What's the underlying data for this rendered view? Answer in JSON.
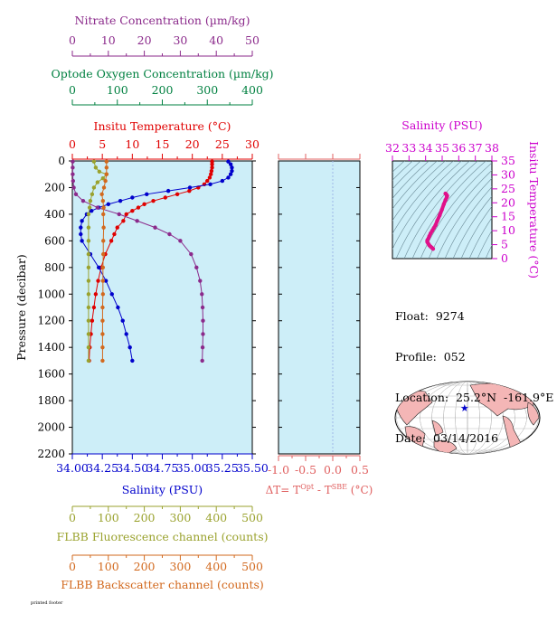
{
  "colors": {
    "nitrate": "#8b2a8b",
    "oxygen": "#008040",
    "temperature": "#e00000",
    "salinity": "#0000cc",
    "fluorescence": "#9aa22e",
    "backscatter": "#d2691e",
    "delta_t": "#e06060",
    "ts_axis": "#cc00cc",
    "plot_bg": "#cdeef8"
  },
  "info": {
    "float": "Float:  9274",
    "profile": "Profile:  052",
    "location": "Location:  25.2°N  -161.9°E",
    "date": "Date:  03/14/2016"
  },
  "footer_text": "printed footer",
  "chart_data": [
    {
      "type": "line",
      "id": "main_profile",
      "ylabel": "Pressure (decibar)",
      "ylim": [
        0,
        2200
      ],
      "yticks": [
        "0",
        "200",
        "400",
        "600",
        "800",
        "1000",
        "1200",
        "1400",
        "1600",
        "1800",
        "2000",
        "2200"
      ],
      "grid": false,
      "axes": {
        "nitrate": {
          "label": "Nitrate Concentration (µm/kg)",
          "range": [
            0,
            50
          ],
          "ticks": [
            "0",
            "10",
            "20",
            "30",
            "40",
            "50"
          ]
        },
        "oxygen": {
          "label": "Optode Oxygen Concentration (µm/kg)",
          "range": [
            0,
            400
          ],
          "ticks": [
            "0",
            "100",
            "200",
            "300",
            "400"
          ]
        },
        "temperature": {
          "label": "Insitu Temperature (°C)",
          "range": [
            0,
            30
          ],
          "ticks": [
            "0",
            "5",
            "10",
            "15",
            "20",
            "25",
            "30"
          ]
        },
        "salinity": {
          "label": "Salinity (PSU)",
          "range": [
            34.0,
            35.5
          ],
          "ticks": [
            "34.00",
            "34.25",
            "34.50",
            "34.75",
            "35.00",
            "35.25",
            "35.50"
          ]
        },
        "fluorescence": {
          "label": "FLBB Fluorescence channel (counts)",
          "range": [
            0,
            500
          ],
          "ticks": [
            "0",
            "100",
            "200",
            "300",
            "400",
            "500"
          ]
        },
        "backscatter": {
          "label": "FLBB Backscatter channel (counts)",
          "range": [
            0,
            500
          ],
          "ticks": [
            "0",
            "100",
            "200",
            "300",
            "400",
            "500"
          ]
        }
      },
      "series": [
        {
          "axis": "temperature",
          "points": [
            [
              23.3,
              5
            ],
            [
              23.3,
              25
            ],
            [
              23.3,
              50
            ],
            [
              23.2,
              75
            ],
            [
              23.1,
              100
            ],
            [
              22.9,
              125
            ],
            [
              22.5,
              150
            ],
            [
              22.0,
              175
            ],
            [
              21.0,
              200
            ],
            [
              19.5,
              225
            ],
            [
              17.5,
              250
            ],
            [
              15.5,
              275
            ],
            [
              13.5,
              300
            ],
            [
              12.0,
              325
            ],
            [
              11.0,
              350
            ],
            [
              10.0,
              375
            ],
            [
              9.0,
              400
            ],
            [
              8.5,
              450
            ],
            [
              7.5,
              500
            ],
            [
              7.0,
              550
            ],
            [
              6.5,
              600
            ],
            [
              5.5,
              700
            ],
            [
              4.8,
              800
            ],
            [
              4.3,
              900
            ],
            [
              3.9,
              1000
            ],
            [
              3.6,
              1100
            ],
            [
              3.3,
              1200
            ],
            [
              3.1,
              1300
            ],
            [
              2.9,
              1400
            ],
            [
              2.8,
              1500
            ]
          ]
        },
        {
          "axis": "salinity",
          "points": [
            [
              35.3,
              5
            ],
            [
              35.32,
              25
            ],
            [
              35.33,
              50
            ],
            [
              35.33,
              75
            ],
            [
              35.32,
              100
            ],
            [
              35.3,
              125
            ],
            [
              35.25,
              150
            ],
            [
              35.15,
              175
            ],
            [
              34.98,
              200
            ],
            [
              34.8,
              225
            ],
            [
              34.62,
              250
            ],
            [
              34.5,
              275
            ],
            [
              34.4,
              300
            ],
            [
              34.3,
              325
            ],
            [
              34.22,
              350
            ],
            [
              34.16,
              375
            ],
            [
              34.12,
              400
            ],
            [
              34.08,
              450
            ],
            [
              34.07,
              500
            ],
            [
              34.07,
              550
            ],
            [
              34.08,
              600
            ],
            [
              34.15,
              700
            ],
            [
              34.22,
              800
            ],
            [
              34.28,
              900
            ],
            [
              34.33,
              1000
            ],
            [
              34.38,
              1100
            ],
            [
              34.42,
              1200
            ],
            [
              34.45,
              1300
            ],
            [
              34.48,
              1400
            ],
            [
              34.5,
              1500
            ]
          ]
        },
        {
          "axis": "nitrate",
          "points": [
            [
              0.1,
              5
            ],
            [
              0.1,
              50
            ],
            [
              0.1,
              100
            ],
            [
              0.2,
              150
            ],
            [
              0.4,
              200
            ],
            [
              1.0,
              250
            ],
            [
              3.0,
              300
            ],
            [
              7.0,
              350
            ],
            [
              13.0,
              400
            ],
            [
              18.0,
              450
            ],
            [
              23.0,
              500
            ],
            [
              27.0,
              550
            ],
            [
              30.0,
              600
            ],
            [
              33.0,
              700
            ],
            [
              34.5,
              800
            ],
            [
              35.5,
              900
            ],
            [
              36.0,
              1000
            ],
            [
              36.2,
              1100
            ],
            [
              36.3,
              1200
            ],
            [
              36.3,
              1300
            ],
            [
              36.2,
              1400
            ],
            [
              36.1,
              1500
            ]
          ]
        },
        {
          "axis": "fluorescence",
          "points": [
            [
              60,
              5
            ],
            [
              65,
              50
            ],
            [
              75,
              80
            ],
            [
              95,
              100
            ],
            [
              85,
              130
            ],
            [
              70,
              160
            ],
            [
              60,
              200
            ],
            [
              55,
              250
            ],
            [
              50,
              300
            ],
            [
              48,
              350
            ],
            [
              45,
              400
            ],
            [
              45,
              500
            ],
            [
              45,
              600
            ],
            [
              45,
              700
            ],
            [
              45,
              800
            ],
            [
              45,
              900
            ],
            [
              45,
              1000
            ],
            [
              45,
              1100
            ],
            [
              45,
              1200
            ],
            [
              45,
              1300
            ],
            [
              45,
              1400
            ],
            [
              45,
              1500
            ]
          ]
        },
        {
          "axis": "backscatter",
          "points": [
            [
              95,
              5
            ],
            [
              95,
              50
            ],
            [
              95,
              100
            ],
            [
              92,
              150
            ],
            [
              88,
              200
            ],
            [
              82,
              250
            ],
            [
              85,
              300
            ],
            [
              87,
              350
            ],
            [
              86,
              400
            ],
            [
              87,
              500
            ],
            [
              86,
              600
            ],
            [
              86,
              700
            ],
            [
              85,
              800
            ],
            [
              85,
              900
            ],
            [
              85,
              1000
            ],
            [
              84,
              1100
            ],
            [
              84,
              1200
            ],
            [
              84,
              1300
            ],
            [
              84,
              1400
            ],
            [
              84,
              1500
            ]
          ]
        }
      ]
    },
    {
      "type": "line",
      "id": "delta_t",
      "xlabel": "ΔT= Tᴼᵖᵗ - Tˢᴮᴱ (°C)",
      "xlabel_main": "ΔT= T",
      "xlabel_sup1": "Opt",
      "xlabel_mid": " - T",
      "xlabel_sup2": "SBE",
      "xlabel_end": " (°C)",
      "xlim": [
        -1.0,
        0.5
      ],
      "xticks": [
        "-1.0",
        "-0.5",
        "0.0",
        "0.5"
      ],
      "ylim": [
        0,
        2200
      ],
      "series": []
    },
    {
      "type": "scatter",
      "id": "ts_diagram",
      "title": "Salinity (PSU)",
      "ylabel": "Insitu Temperature (°C)",
      "xlim": [
        32,
        38
      ],
      "xticks": [
        "32",
        "33",
        "34",
        "35",
        "36",
        "37",
        "38"
      ],
      "ylim": [
        0,
        35
      ],
      "yticks": [
        "0",
        "5",
        "10",
        "15",
        "20",
        "25",
        "30",
        "35"
      ],
      "series": [
        {
          "name": "",
          "points": [
            [
              35.2,
              23.3
            ],
            [
              35.25,
              23.0
            ],
            [
              35.3,
              22.5
            ],
            [
              35.28,
              22.0
            ],
            [
              35.2,
              21.0
            ],
            [
              35.1,
              19.5
            ],
            [
              34.98,
              17.5
            ],
            [
              34.85,
              15.5
            ],
            [
              34.7,
              13.5
            ],
            [
              34.6,
              12.0
            ],
            [
              34.5,
              11.0
            ],
            [
              34.4,
              10.0
            ],
            [
              34.3,
              9.0
            ],
            [
              34.22,
              8.0
            ],
            [
              34.15,
              7.0
            ],
            [
              34.1,
              6.5
            ],
            [
              34.1,
              6.0
            ],
            [
              34.15,
              5.5
            ],
            [
              34.22,
              4.8
            ],
            [
              34.3,
              4.3
            ],
            [
              34.38,
              3.9
            ],
            [
              34.45,
              3.5
            ]
          ]
        }
      ]
    },
    {
      "type": "map",
      "id": "location_map",
      "marker": {
        "lat": 25.2,
        "lon": -161.9
      }
    }
  ]
}
